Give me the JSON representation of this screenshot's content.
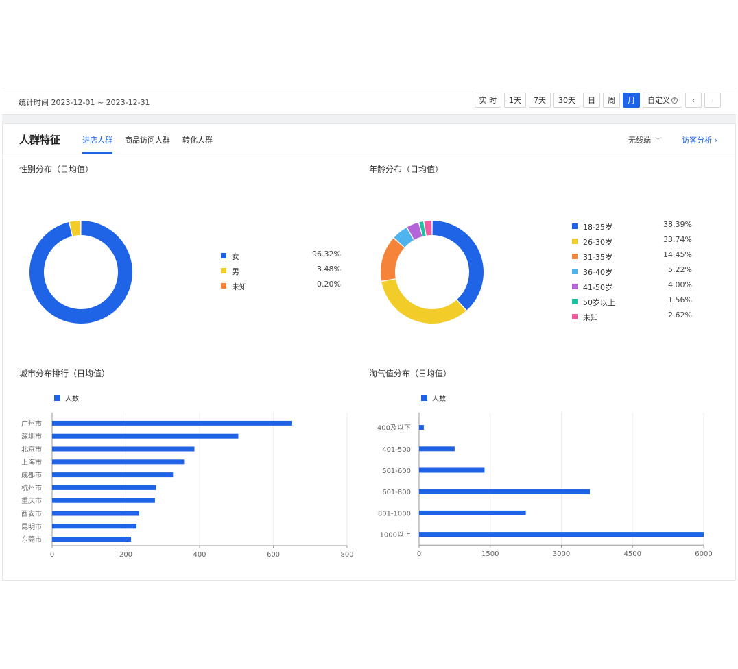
{
  "header": {
    "stat_time": "统计时间 2023-12-01 ~ 2023-12-31",
    "range_buttons": [
      "实 时",
      "1天",
      "7天",
      "30天",
      "日",
      "周",
      "月"
    ],
    "active_range": "月",
    "custom_label": "自定义",
    "prev": "‹",
    "next": "›"
  },
  "panel": {
    "title": "人群特征",
    "tabs": [
      "进店人群",
      "商品访问人群",
      "转化人群"
    ],
    "active_tab": 0,
    "device_select": "无线端",
    "visitor_link": "访客分析 ›"
  },
  "colors": {
    "accent": "#1f63e6",
    "female": "#1f63e6",
    "male": "#f2cd2a",
    "unknown_gender": "#f5843a"
  },
  "gender": {
    "title": "性别分布（日均值）",
    "chart_data": {
      "type": "pie",
      "donut": true,
      "labels": [
        "女",
        "男",
        "未知"
      ],
      "display": [
        "96.32%",
        "3.48%",
        "0.20%"
      ],
      "values": [
        96.32,
        3.48,
        0.2
      ],
      "colors": [
        "#1f63e6",
        "#f2cd2a",
        "#f5843a"
      ]
    }
  },
  "age": {
    "title": "年龄分布（日均值）",
    "chart_data": {
      "type": "pie",
      "donut": true,
      "labels": [
        "18-25岁",
        "26-30岁",
        "31-35岁",
        "36-40岁",
        "41-50岁",
        "50岁以上",
        "未知"
      ],
      "display": [
        "38.39%",
        "33.74%",
        "14.45%",
        "5.22%",
        "4.00%",
        "1.56%",
        "2.62%"
      ],
      "values": [
        38.39,
        33.74,
        14.45,
        5.22,
        4.0,
        1.56,
        2.62
      ],
      "colors": [
        "#1f63e6",
        "#f2cd2a",
        "#f5843a",
        "#4fb3ee",
        "#b364d8",
        "#1fc1a5",
        "#ec5ea0"
      ]
    }
  },
  "city": {
    "title": "城市分布排行（日均值）",
    "legend": "人数",
    "chart_data": {
      "type": "bar",
      "orientation": "horizontal",
      "categories": [
        "广州市",
        "深圳市",
        "北京市",
        "上海市",
        "成都市",
        "杭州市",
        "重庆市",
        "西安市",
        "昆明市",
        "东莞市"
      ],
      "series": [
        {
          "name": "人数",
          "values": [
            651,
            505,
            386,
            358,
            328,
            282,
            279,
            236,
            229,
            214
          ]
        }
      ],
      "xlim": [
        0,
        800
      ],
      "xticks": [
        0,
        200,
        400,
        600,
        800
      ],
      "grid": true
    }
  },
  "naughty": {
    "title": "淘气值分布（日均值）",
    "legend": "人数",
    "chart_data": {
      "type": "bar",
      "orientation": "horizontal",
      "categories": [
        "400及以下",
        "401-500",
        "501-600",
        "601-800",
        "801-1000",
        "1000以上"
      ],
      "series": [
        {
          "name": "人数",
          "values": [
            100,
            750,
            1380,
            3600,
            2250,
            6000
          ]
        }
      ],
      "xlim": [
        0,
        6000
      ],
      "xticks": [
        0,
        1500,
        3000,
        4500,
        6000
      ],
      "grid": true
    }
  }
}
